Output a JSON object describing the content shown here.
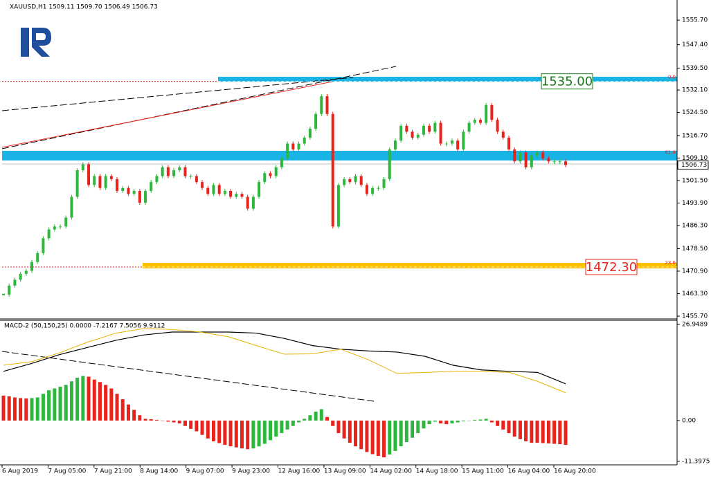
{
  "chart_data": {
    "type": "candlestick",
    "title": "XAUUSD,H1  1509.11 1509.70 1506.49 1506.73",
    "x_labels": [
      "6 Aug 2019",
      "7 Aug 05:00",
      "7 Aug 21:00",
      "8 Aug 14:00",
      "9 Aug 07:00",
      "9 Aug 23:00",
      "12 Aug 16:00",
      "13 Aug 09:00",
      "14 Aug 02:00",
      "14 Aug 18:00",
      "15 Aug 11:00",
      "16 Aug 04:00",
      "16 Aug 20:00"
    ],
    "close": [
      1463,
      1466,
      1468,
      1470,
      1471,
      1474,
      1477,
      1482,
      1485,
      1486,
      1486,
      1489,
      1496,
      1505,
      1507,
      1500,
      1503,
      1499,
      1503,
      1502,
      1498,
      1499,
      1497,
      1498,
      1494,
      1498,
      1501,
      1503,
      1506,
      1503,
      1505,
      1506,
      1503,
      1503,
      1501,
      1499,
      1497,
      1500,
      1497,
      1498,
      1496,
      1497,
      1496,
      1492,
      1496,
      1501,
      1504,
      1503,
      1506,
      1509,
      1514,
      1512,
      1514,
      1516,
      1519,
      1524,
      1530,
      1524,
      1486,
      1500,
      1502,
      1501,
      1503,
      1500,
      1497,
      1499,
      1499,
      1502,
      1512,
      1515,
      1520,
      1518,
      1516,
      1517,
      1520,
      1518,
      1521,
      1514,
      1514,
      1515,
      1512,
      1518,
      1521,
      1522,
      1521,
      1527,
      1522,
      1518,
      1516,
      1512,
      1508,
      1511,
      1506,
      1510,
      1511,
      1509,
      1508,
      1508,
      1508,
      1506.73
    ],
    "up_color": "#2db83d",
    "down_color": "#e8231c",
    "ylim": [
      1455.0,
      1562.5
    ],
    "yticks": [
      {
        "value": 1555.7,
        "label": "1555.70"
      },
      {
        "value": 1547.4,
        "label": "1547.40"
      },
      {
        "value": 1539.5,
        "label": "1539.50"
      },
      {
        "value": 1532.1,
        "label": "1532.10"
      },
      {
        "value": 1524.5,
        "label": "1524.50"
      },
      {
        "value": 1516.7,
        "label": "1516.70"
      },
      {
        "value": 1509.1,
        "label": "1509.10"
      },
      {
        "value": 1501.5,
        "label": "1501.50"
      },
      {
        "value": 1493.9,
        "label": "1493.90"
      },
      {
        "value": 1486.3,
        "label": "1486.30"
      },
      {
        "value": 1478.5,
        "label": "1478.50"
      },
      {
        "value": 1470.9,
        "label": "1470.90"
      },
      {
        "value": 1463.3,
        "label": "1463.30"
      },
      {
        "value": 1455.7,
        "label": "1455.70"
      }
    ],
    "levels": [
      {
        "value": 1535,
        "label": "1535.00",
        "color": "#1a7a1a"
      },
      {
        "value": 1472.3,
        "label": "1472.30",
        "color": "#e8231c"
      }
    ],
    "fib": [
      {
        "value": 1535,
        "label": "0.0"
      },
      {
        "value": 1509.6,
        "label": "61.8"
      },
      {
        "value": 1472.3,
        "label": "23.6"
      }
    ],
    "macd": {
      "title": "MACD-2 (50,150,25) 0.0000 -7.2167 7.5056 9.9112",
      "histogram": [
        7,
        6.8,
        6.5,
        6.3,
        6.2,
        6.3,
        6.5,
        7.5,
        8.5,
        9,
        9.5,
        10,
        11,
        12,
        12.5,
        12.3,
        11.5,
        10.8,
        10,
        9,
        7.5,
        6,
        4.5,
        3,
        1.5,
        0.5,
        0.4,
        0.2,
        0,
        -0.3,
        -0.5,
        -0.8,
        -1.5,
        -2.3,
        -3,
        -4,
        -5,
        -5.8,
        -6.3,
        -6.8,
        -7.2,
        -7.5,
        -7.8,
        -8,
        -7.8,
        -7.2,
        -6.5,
        -5.5,
        -4.5,
        -3.5,
        -2.5,
        -1.5,
        -0.5,
        0.5,
        1.5,
        2.5,
        3.2,
        1,
        -1.5,
        -3.5,
        -5,
        -6.2,
        -7.2,
        -8,
        -8.8,
        -9.4,
        -9.9,
        -10.3,
        -9.5,
        -8.5,
        -7.2,
        -6,
        -4.8,
        -3.5,
        -2.2,
        -1,
        -0.3,
        -0.8,
        -1,
        -0.8,
        -0.5,
        -0.2,
        0,
        0.2,
        0.3,
        0.5,
        -0.5,
        -1.5,
        -2.5,
        -3.5,
        -4.5,
        -5.2,
        -5.8,
        -6.2,
        -6.2,
        -6.3,
        -6.4,
        -6.5,
        -6.6,
        -6.8
      ],
      "main": [
        13.8,
        16,
        18.5,
        20.5,
        22.5,
        24,
        24.8,
        24.8,
        24.8,
        24.5,
        23,
        21,
        20,
        19.5,
        19.2,
        18,
        15.5,
        14.2,
        13.8,
        13.5,
        10.3
      ],
      "signal": [
        15.5,
        16.5,
        19,
        22,
        24.5,
        25.8,
        25.5,
        24.8,
        23.5,
        21,
        18.6,
        18.7,
        20,
        17,
        13.2,
        13.5,
        13.8,
        13.8,
        13.5,
        11,
        7.8
      ],
      "main_color": "#000000",
      "signal_color": "#e8b400",
      "ylim": [
        -12.4,
        28.1
      ],
      "yticks": [
        26.9489,
        {
          "value": 0,
          "label": "0.00"
        },
        -11.3975
      ]
    }
  }
}
